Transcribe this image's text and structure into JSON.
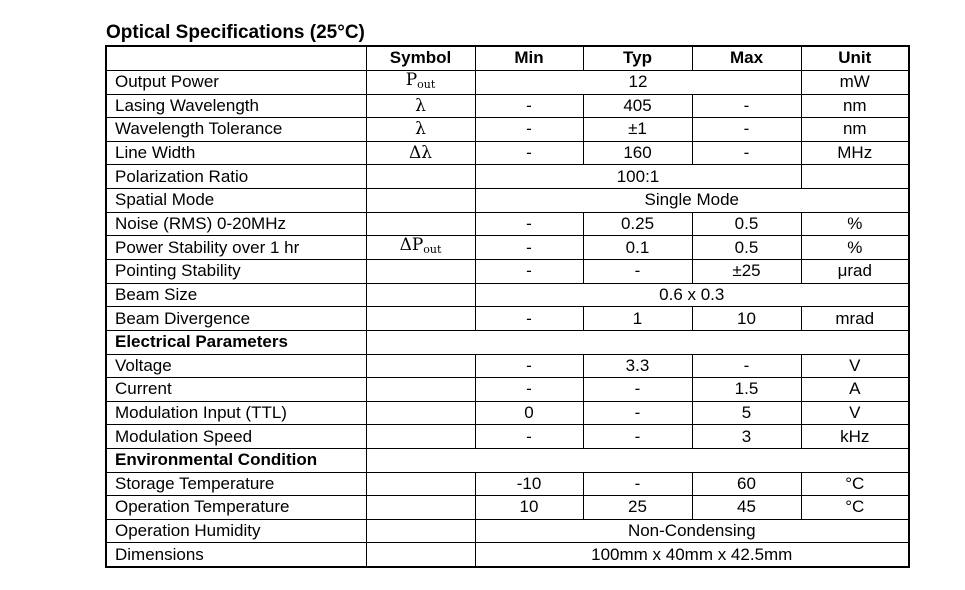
{
  "title": "Optical Specifications (25°C)",
  "headers": {
    "parameter": "",
    "symbol": "Symbol",
    "min": "Min",
    "typ": "Typ",
    "max": "Max",
    "unit": "Unit"
  },
  "rows": [
    {
      "kind": "full",
      "name": "Output Power",
      "symbol_main": "P",
      "symbol_sub": "out",
      "min": "",
      "typ": "12",
      "max": "",
      "unit": "mW",
      "span_min_max": true
    },
    {
      "kind": "full",
      "name": "Lasing Wavelength",
      "symbol_main": "λ",
      "symbol_sub": "",
      "min": "-",
      "typ": "405",
      "max": "-",
      "unit": "nm"
    },
    {
      "kind": "full",
      "name": "Wavelength Tolerance",
      "symbol_main": "λ",
      "symbol_sub": "",
      "min": "-",
      "typ": "±1",
      "max": "-",
      "unit": "nm"
    },
    {
      "kind": "full",
      "name": "Line Width",
      "symbol_main": "Δλ",
      "symbol_sub": "",
      "min": "-",
      "typ": "160",
      "max": "-",
      "unit": "MHz"
    },
    {
      "kind": "merged3",
      "name": "Polarization Ratio",
      "value": "100:1",
      "unit": ""
    },
    {
      "kind": "merged-all",
      "name": "Spatial Mode",
      "value": "Single Mode"
    },
    {
      "kind": "full",
      "name": "Noise (RMS) 0-20MHz",
      "symbol_main": "",
      "symbol_sub": "",
      "min": "-",
      "typ": "0.25",
      "max": "0.5",
      "unit": "%"
    },
    {
      "kind": "full",
      "name": "Power Stability over 1 hr",
      "symbol_main": "ΔP",
      "symbol_sub": "out",
      "min": "-",
      "typ": "0.1",
      "max": "0.5",
      "unit": "%"
    },
    {
      "kind": "full",
      "name": "Pointing Stability",
      "symbol_main": "",
      "symbol_sub": "",
      "min": "-",
      "typ": "-",
      "max": "±25",
      "unit": "μrad"
    },
    {
      "kind": "merged-all",
      "name": "Beam Size",
      "value": "0.6 x 0.3"
    },
    {
      "kind": "full",
      "name": "Beam Divergence",
      "symbol_main": "",
      "symbol_sub": "",
      "min": "-",
      "typ": "1",
      "max": "10",
      "unit": "mrad"
    },
    {
      "kind": "section",
      "name": "Electrical Parameters"
    },
    {
      "kind": "full",
      "name": "Voltage",
      "symbol_main": "",
      "symbol_sub": "",
      "min": "-",
      "typ": "3.3",
      "max": "-",
      "unit": "V"
    },
    {
      "kind": "full",
      "name": "Current",
      "symbol_main": "",
      "symbol_sub": "",
      "min": "-",
      "typ": "-",
      "max": "1.5",
      "unit": "A"
    },
    {
      "kind": "full",
      "name": "Modulation Input (TTL)",
      "symbol_main": "",
      "symbol_sub": "",
      "min": "0",
      "typ": "-",
      "max": "5",
      "unit": "V"
    },
    {
      "kind": "full",
      "name": "Modulation Speed",
      "symbol_main": "",
      "symbol_sub": "",
      "min": "-",
      "typ": "-",
      "max": "3",
      "unit": "kHz"
    },
    {
      "kind": "section",
      "name": "Environmental Condition"
    },
    {
      "kind": "full",
      "name": "Storage Temperature",
      "symbol_main": "",
      "symbol_sub": "",
      "min": "-10",
      "typ": "-",
      "max": "60",
      "unit": "°C"
    },
    {
      "kind": "full",
      "name": "Operation Temperature",
      "symbol_main": "",
      "symbol_sub": "",
      "min": "10",
      "typ": "25",
      "max": "45",
      "unit": "°C"
    },
    {
      "kind": "merged-all",
      "name": "Operation Humidity",
      "value": "Non-Condensing"
    },
    {
      "kind": "merged-all",
      "name": "Dimensions",
      "value": "100mm x 40mm x 42.5mm"
    }
  ]
}
